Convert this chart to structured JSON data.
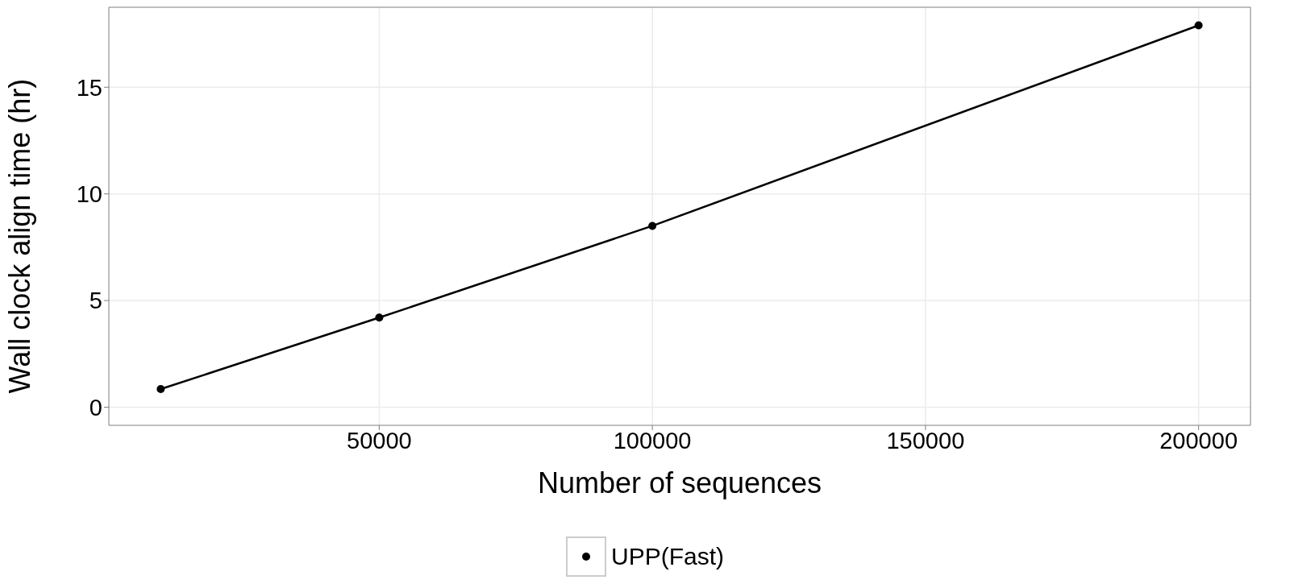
{
  "chart_data": {
    "type": "line",
    "xlabel": "Number of sequences",
    "ylabel": "Wall clock align time (hr)",
    "x": [
      10000,
      50000,
      100000,
      200000
    ],
    "series": [
      {
        "name": "UPP(Fast)",
        "color": "#000000",
        "values": [
          0.85,
          4.2,
          8.5,
          17.9
        ]
      }
    ],
    "xlim": [
      500,
      209500
    ],
    "xticks": [
      50000,
      100000,
      150000,
      200000
    ],
    "ylim": [
      -0.85,
      18.75
    ],
    "yticks": [
      0,
      5,
      10,
      15
    ],
    "grid": true,
    "legend": "bottom",
    "marker": "circle",
    "line_style": "solid"
  }
}
